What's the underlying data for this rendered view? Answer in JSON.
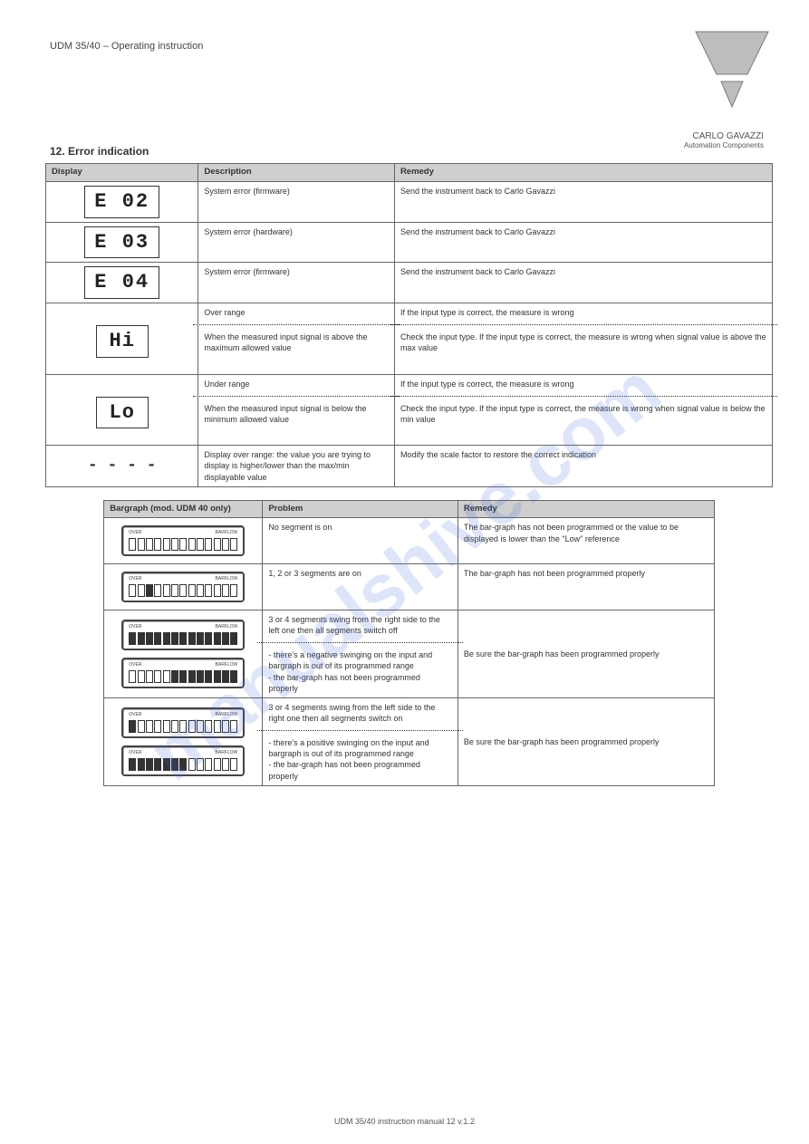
{
  "header": {
    "title": "UDM 35/40 – Operating instruction"
  },
  "brand": {
    "line1": "CARLO GAVAZZI",
    "line2": "Automation Components"
  },
  "logo": {
    "outer": "#bdbdbd",
    "inner": "#bdbdbd",
    "stroke": "#7a7a7d"
  },
  "section": {
    "title": "12. Error indication"
  },
  "watermark": "manualshive.com",
  "table1": {
    "cols": [
      "Display",
      "Description",
      "Remedy"
    ],
    "widths": [
      "21%",
      "27%",
      "52%"
    ],
    "rows": [
      {
        "disp": "E 02",
        "desc": "System error (firmware)",
        "rem": "Send the instrument back to Carlo Gavazzi"
      },
      {
        "disp": "E 03",
        "desc": "System error (hardware)",
        "rem": "Send the instrument back to Carlo Gavazzi"
      },
      {
        "disp": "E 04",
        "desc": "System error (firmware)",
        "rem": "Send the instrument back to Carlo Gavazzi"
      },
      {
        "disp": "Hi",
        "desc_top": "Over range",
        "desc_bot": "When the measured input signal is above the maximum allowed value",
        "rem_top": "If the input type is correct, the measure is wrong",
        "rem_bot": "Check the input type. If the input type is correct, the measure is wrong when signal value is above the max value"
      },
      {
        "disp": "Lo",
        "desc_top": "Under range",
        "desc_bot": "When the measured input signal is below the minimum allowed value",
        "rem_top": "If the input type is correct, the measure is wrong",
        "rem_bot": "Check the input type. If the input type is correct, the measure is wrong when signal value is below the min value"
      },
      {
        "disp": "",
        "desc": "Display over range: the value you are trying to display is higher/lower than the max/min displayable value",
        "rem": "Modify the scale factor to restore the correct indication"
      }
    ]
  },
  "table2": {
    "cols": [
      "Bargraph (mod. UDM 40 only)",
      "Problem",
      "Remedy"
    ],
    "widths": [
      "26%",
      "32%",
      "42%"
    ],
    "rows": [
      {
        "bars": [
          [
            0,
            0,
            0,
            0,
            0,
            0,
            0,
            0,
            0,
            0,
            0,
            0,
            0
          ]
        ],
        "segnum": 3,
        "prob": "No segment is on",
        "rem": "The bar-graph has not been programmed or the value to be displayed is lower than the \"Low\" reference"
      },
      {
        "bars": [
          [
            0,
            0,
            1,
            0,
            0,
            0,
            0,
            0,
            0,
            0,
            0,
            0,
            0
          ]
        ],
        "segnum": 3,
        "prob": "1, 2 or 3 segments are on",
        "rem": "The bar-graph has not been programmed properly"
      },
      {
        "bars": [
          [
            1,
            1,
            1,
            1,
            1,
            1,
            1,
            1,
            1,
            1,
            1,
            1,
            1
          ],
          [
            0,
            0,
            0,
            0,
            0,
            1,
            1,
            1,
            1,
            1,
            1,
            1,
            1
          ]
        ],
        "segnum": 3,
        "prob_top": "3 or 4 segments swing from the right side to the left one then all segments switch off",
        "prob_bot": "- there's a negative swinging on the input and bargraph is out of its programmed range\n- the bar-graph has not been programmed properly",
        "rem": "Be sure the bar-graph has been programmed properly"
      },
      {
        "bars": [
          [
            1,
            0,
            0,
            0,
            0,
            0,
            0,
            0,
            0,
            0,
            0,
            0,
            0
          ],
          [
            1,
            1,
            1,
            1,
            1,
            1,
            1,
            0,
            0,
            0,
            0,
            0,
            0
          ]
        ],
        "segnum": 3,
        "prob_top": "3 or 4 segments swing from the left side to the right one then all segments switch on",
        "prob_bot": "- there's a positive swinging on the input and bargraph is out of its programmed range\n- the bar-graph has not been programmed properly",
        "rem": "Be sure the bar-graph has been programmed properly"
      }
    ]
  },
  "footer": "UDM 35/40 instruction manual          12          v.1.2"
}
